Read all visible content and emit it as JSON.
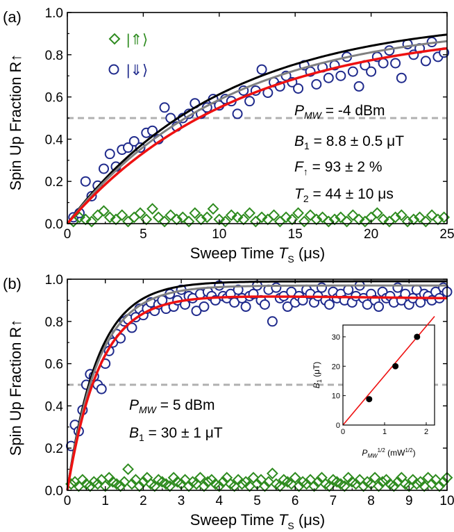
{
  "figure": {
    "panels": [
      {
        "panel_label": "(a)",
        "xlabel": "Sweep Time T_S (μs)",
        "xlabel_parts": {
          "prefix": "Sweep Time ",
          "var": "T",
          "sub": "S",
          "suffix": " (μs)"
        },
        "ylabel": "Spin Up Fraction R↑",
        "legend": {
          "items": [
            {
              "label": "|⇑⟩",
              "marker": "diamond",
              "color": "#2e8b1f"
            },
            {
              "label": "|⇓⟩",
              "marker": "circle",
              "color": "#1f2a8c"
            }
          ]
        },
        "annotations": [
          {
            "var": "P",
            "sub": "MW",
            "text": " = -4 dBm"
          },
          {
            "var": "B",
            "sub": "1",
            "text": " = 8.8 ± 0.5 μT"
          },
          {
            "var": "F",
            "sub": "↑",
            "text": " = 93 ± 2 %"
          },
          {
            "var": "T",
            "sub": "2",
            "text": " = 44 ± 10 μs"
          }
        ]
      },
      {
        "panel_label": "(b)",
        "xlabel": "Sweep Time T_S (μs)",
        "xlabel_parts": {
          "prefix": "Sweep Time ",
          "var": "T",
          "sub": "S",
          "suffix": " (μs)"
        },
        "ylabel": "Spin Up Fraction R↑",
        "annotations": [
          {
            "var": "P",
            "sub": "MW",
            "text": " = 5 dBm"
          },
          {
            "var": "B",
            "sub": "1",
            "text": " = 30 ± 1 μT"
          }
        ],
        "inset": {
          "xlabel_parts": {
            "var": "P",
            "sub": "MW",
            "sup": "1/2",
            "suffix": " (mW",
            "suffix_sup": "1/2",
            "end": ")"
          },
          "ylabel_parts": {
            "var": "B",
            "sub": "1",
            "suffix": " (μT)"
          }
        }
      }
    ]
  },
  "chart_data": [
    {
      "type": "scatter",
      "panel": "(a)",
      "xlim": [
        0,
        25
      ],
      "ylim": [
        0,
        1.0
      ],
      "xticks": [
        0,
        5,
        10,
        15,
        20,
        25
      ],
      "yticks": [
        0.0,
        0.2,
        0.4,
        0.6,
        0.8,
        1.0
      ],
      "xtick_labels": [
        "0",
        "5",
        "10",
        "15",
        "20",
        "25"
      ],
      "ytick_labels": [
        "0.0",
        "0.2",
        "0.4",
        "0.6",
        "0.8",
        "1.0"
      ],
      "grid": false,
      "reference_line": {
        "y": 0.5,
        "style": "dashed",
        "color": "#b0b0b0"
      },
      "series": [
        {
          "name": "|⇓⟩",
          "marker": "circle",
          "color": "#1f2a8c",
          "x": [
            0.4,
            0.8,
            1.2,
            1.6,
            2.0,
            2.4,
            2.8,
            3.2,
            3.6,
            4.0,
            4.4,
            4.8,
            5.2,
            5.6,
            6.0,
            6.4,
            6.8,
            7.2,
            7.6,
            8.0,
            8.4,
            8.8,
            9.2,
            9.6,
            10.0,
            10.4,
            10.8,
            11.2,
            11.6,
            12.0,
            12.4,
            12.8,
            13.2,
            13.6,
            14.0,
            14.4,
            14.8,
            15.2,
            15.6,
            16.0,
            16.4,
            16.8,
            17.2,
            17.6,
            18.0,
            18.4,
            18.8,
            19.2,
            19.6,
            20.0,
            20.4,
            20.8,
            21.2,
            21.6,
            22.0,
            22.4,
            22.8,
            23.2,
            23.6,
            24.0,
            24.4,
            24.8
          ],
          "y": [
            0.03,
            0.05,
            0.2,
            0.13,
            0.18,
            0.26,
            0.33,
            0.27,
            0.35,
            0.36,
            0.39,
            0.36,
            0.43,
            0.44,
            0.4,
            0.55,
            0.5,
            0.46,
            0.5,
            0.52,
            0.57,
            0.52,
            0.55,
            0.59,
            0.56,
            0.59,
            0.58,
            0.52,
            0.63,
            0.58,
            0.63,
            0.73,
            0.62,
            0.67,
            0.65,
            0.7,
            0.67,
            0.64,
            0.75,
            0.72,
            0.66,
            0.74,
            0.69,
            0.75,
            0.7,
            0.79,
            0.72,
            0.65,
            0.75,
            0.72,
            0.79,
            0.76,
            0.82,
            0.76,
            0.69,
            0.85,
            0.8,
            0.83,
            0.77,
            0.86,
            0.79,
            0.81
          ]
        },
        {
          "name": "|⇑⟩",
          "marker": "diamond",
          "color": "#2e8b1f",
          "x": [
            0.4,
            0.8,
            1.2,
            1.6,
            2.0,
            2.4,
            2.8,
            3.2,
            3.6,
            4.0,
            4.4,
            4.8,
            5.2,
            5.6,
            6.0,
            6.4,
            6.8,
            7.2,
            7.6,
            8.0,
            8.4,
            8.8,
            9.2,
            9.6,
            10.0,
            10.4,
            10.8,
            11.2,
            11.6,
            12.0,
            12.4,
            12.8,
            13.2,
            13.6,
            14.0,
            14.4,
            14.8,
            15.2,
            15.6,
            16.0,
            16.4,
            16.8,
            17.2,
            17.6,
            18.0,
            18.4,
            18.8,
            19.2,
            19.6,
            20.0,
            20.4,
            20.8,
            21.2,
            21.6,
            22.0,
            22.4,
            22.8,
            23.2,
            23.6,
            24.0,
            24.4,
            24.8
          ],
          "y": [
            0.01,
            0.03,
            0.02,
            0.01,
            0.04,
            0.06,
            0.03,
            0.02,
            0.04,
            0.01,
            0.03,
            0.05,
            0.02,
            0.07,
            0.03,
            0.01,
            0.04,
            0.02,
            0.03,
            0.01,
            0.05,
            0.02,
            0.03,
            0.07,
            0.02,
            0.01,
            0.04,
            0.03,
            0.02,
            0.05,
            0.01,
            0.03,
            0.02,
            0.04,
            0.01,
            0.03,
            0.02,
            0.05,
            0.01,
            0.04,
            0.02,
            0.03,
            0.01,
            0.02,
            0.03,
            0.01,
            0.04,
            0.02,
            0.01,
            0.03,
            0.05,
            0.02,
            0.01,
            0.03,
            0.04,
            0.01,
            0.02,
            0.03,
            0.01,
            0.04,
            0.02,
            0.03
          ]
        }
      ],
      "fits": [
        {
          "color": "#000000",
          "model": "1-exp(-x/tau)",
          "A": 0.98,
          "tau": 10.2
        },
        {
          "color": "#808080",
          "model": "1-exp(-x/tau)",
          "A": 0.95,
          "tau": 10.4
        },
        {
          "color": "#ee1111",
          "model": "1-exp(-x/tau)",
          "A": 0.93,
          "tau": 11.2
        }
      ]
    },
    {
      "type": "scatter",
      "panel": "(b)",
      "xlim": [
        0,
        10
      ],
      "ylim": [
        0,
        1.0
      ],
      "xticks": [
        0,
        1,
        2,
        3,
        4,
        5,
        6,
        7,
        8,
        9,
        10
      ],
      "yticks": [
        0.0,
        0.2,
        0.4,
        0.6,
        0.8,
        1.0
      ],
      "xtick_labels": [
        "0",
        "1",
        "2",
        "3",
        "4",
        "5",
        "6",
        "7",
        "8",
        "9",
        "10"
      ],
      "ytick_labels": [
        "0.0",
        "0.2",
        "0.4",
        "0.6",
        "0.8",
        "1.0"
      ],
      "grid": false,
      "reference_line": {
        "y": 0.5,
        "style": "dashed",
        "color": "#b0b0b0"
      },
      "series": [
        {
          "name": "|⇓⟩",
          "marker": "circle",
          "color": "#1f2a8c",
          "x": [
            0.1,
            0.2,
            0.3,
            0.4,
            0.5,
            0.6,
            0.7,
            0.8,
            0.9,
            1.0,
            1.1,
            1.2,
            1.3,
            1.4,
            1.5,
            1.6,
            1.7,
            1.8,
            1.9,
            2.0,
            2.1,
            2.2,
            2.3,
            2.4,
            2.5,
            2.6,
            2.7,
            2.8,
            2.9,
            3.0,
            3.1,
            3.2,
            3.3,
            3.4,
            3.5,
            3.6,
            3.7,
            3.8,
            3.9,
            4.0,
            4.1,
            4.2,
            4.3,
            4.4,
            4.5,
            4.6,
            4.7,
            4.8,
            4.9,
            5.0,
            5.1,
            5.2,
            5.3,
            5.4,
            5.5,
            5.6,
            5.7,
            5.8,
            5.9,
            6.0,
            6.1,
            6.2,
            6.3,
            6.4,
            6.5,
            6.6,
            6.7,
            6.8,
            6.9,
            7.0,
            7.1,
            7.2,
            7.3,
            7.4,
            7.5,
            7.6,
            7.7,
            7.8,
            7.9,
            8.0,
            8.1,
            8.2,
            8.3,
            8.4,
            8.5,
            8.6,
            8.7,
            8.8,
            8.9,
            9.0,
            9.1,
            9.2,
            9.3,
            9.4,
            9.5,
            9.6,
            9.7,
            9.8,
            9.9,
            10.0
          ],
          "y": [
            0.21,
            0.31,
            0.28,
            0.38,
            0.5,
            0.55,
            0.54,
            0.5,
            0.48,
            0.6,
            0.66,
            0.7,
            0.74,
            0.72,
            0.8,
            0.81,
            0.77,
            0.82,
            0.86,
            0.83,
            0.86,
            0.89,
            0.85,
            0.88,
            0.9,
            0.86,
            0.93,
            0.87,
            0.9,
            0.95,
            0.88,
            0.92,
            0.91,
            0.85,
            0.93,
            0.87,
            0.94,
            0.92,
            0.9,
            0.97,
            0.92,
            0.91,
            0.93,
            0.89,
            0.95,
            0.91,
            0.87,
            0.92,
            0.93,
            0.97,
            0.9,
            0.88,
            0.95,
            0.8,
            0.96,
            0.91,
            0.92,
            0.87,
            0.94,
            0.89,
            0.92,
            0.9,
            0.95,
            0.93,
            0.89,
            0.92,
            0.96,
            0.9,
            0.88,
            0.94,
            0.91,
            0.93,
            0.9,
            0.95,
            0.89,
            0.92,
            0.97,
            0.91,
            0.88,
            0.93,
            0.9,
            0.87,
            0.94,
            0.91,
            0.92,
            0.89,
            0.96,
            0.9,
            0.93,
            0.88,
            0.91,
            0.95,
            0.89,
            0.93,
            0.92,
            0.9,
            0.94,
            0.91,
            0.96,
            0.94
          ]
        },
        {
          "name": "|⇑⟩",
          "marker": "diamond",
          "color": "#2e8b1f",
          "x": [
            0.1,
            0.2,
            0.3,
            0.4,
            0.5,
            0.6,
            0.7,
            0.8,
            0.9,
            1.0,
            1.1,
            1.2,
            1.3,
            1.4,
            1.5,
            1.6,
            1.7,
            1.8,
            1.9,
            2.0,
            2.1,
            2.2,
            2.3,
            2.4,
            2.5,
            2.6,
            2.7,
            2.8,
            2.9,
            3.0,
            3.1,
            3.2,
            3.3,
            3.4,
            3.5,
            3.6,
            3.7,
            3.8,
            3.9,
            4.0,
            4.1,
            4.2,
            4.3,
            4.4,
            4.5,
            4.6,
            4.7,
            4.8,
            4.9,
            5.0,
            5.1,
            5.2,
            5.3,
            5.4,
            5.5,
            5.6,
            5.7,
            5.8,
            5.9,
            6.0,
            6.1,
            6.2,
            6.3,
            6.4,
            6.5,
            6.6,
            6.7,
            6.8,
            6.9,
            7.0,
            7.1,
            7.2,
            7.3,
            7.4,
            7.5,
            7.6,
            7.7,
            7.8,
            7.9,
            8.0,
            8.1,
            8.2,
            8.3,
            8.4,
            8.5,
            8.6,
            8.7,
            8.8,
            8.9,
            9.0,
            9.1,
            9.2,
            9.3,
            9.4,
            9.5,
            9.6,
            9.7,
            9.8,
            9.9,
            10.0
          ],
          "y": [
            0.03,
            0.04,
            0.02,
            0.05,
            0.03,
            0.02,
            0.04,
            0.03,
            0.05,
            0.02,
            0.06,
            0.04,
            0.03,
            0.02,
            0.04,
            0.1,
            0.03,
            0.05,
            0.02,
            0.04,
            0.06,
            0.03,
            0.02,
            0.05,
            0.04,
            0.03,
            0.02,
            0.06,
            0.04,
            0.03,
            0.05,
            0.02,
            0.04,
            0.03,
            0.06,
            0.02,
            0.04,
            0.05,
            0.03,
            0.02,
            0.04,
            0.06,
            0.03,
            0.02,
            0.05,
            0.03,
            0.04,
            0.02,
            0.06,
            0.03,
            0.05,
            0.02,
            0.04,
            0.08,
            0.03,
            0.02,
            0.05,
            0.04,
            0.03,
            0.06,
            0.02,
            0.04,
            0.03,
            0.05,
            0.02,
            0.04,
            0.06,
            0.03,
            0.02,
            0.05,
            0.04,
            0.03,
            0.02,
            0.06,
            0.04,
            0.03,
            0.05,
            0.02,
            0.04,
            0.03,
            0.06,
            0.02,
            0.04,
            0.05,
            0.03,
            0.02,
            0.04,
            0.06,
            0.03,
            0.02,
            0.05,
            0.03,
            0.04,
            0.02,
            0.06,
            0.03,
            0.05,
            0.02,
            0.04,
            0.06
          ]
        }
      ],
      "fits": [
        {
          "color": "#000000",
          "model": "A(1-exp(-x/tau))",
          "A": 0.99,
          "tau": 0.8
        },
        {
          "color": "#808080",
          "model": "A(1-exp(-x/tau))",
          "A": 0.97,
          "tau": 0.82
        },
        {
          "color": "#ee1111",
          "model": "A(1-exp(-x/tau)) - b*x",
          "A": 0.93,
          "tau": 0.85,
          "b": 0.002
        }
      ]
    },
    {
      "type": "scatter",
      "panel": "(b) inset",
      "xlim": [
        0,
        2.2
      ],
      "ylim": [
        0,
        34
      ],
      "xticks": [
        0,
        1,
        2
      ],
      "yticks": [
        0,
        10,
        20,
        30
      ],
      "xtick_labels": [
        "0",
        "1",
        "2"
      ],
      "ytick_labels": [
        "0",
        "10",
        "20",
        "30"
      ],
      "grid": false,
      "series": [
        {
          "marker": "filled-circle",
          "color": "#000000",
          "x": [
            0.63,
            1.26,
            1.78
          ],
          "y": [
            8.8,
            20.0,
            30.0
          ],
          "xerr": [
            0.07,
            0.07,
            0.07
          ],
          "yerr": [
            0.5,
            0.8,
            1.0
          ]
        }
      ],
      "fit": {
        "color": "#ee1111",
        "model": "linear",
        "slope": 16.8,
        "intercept": 0
      }
    }
  ]
}
